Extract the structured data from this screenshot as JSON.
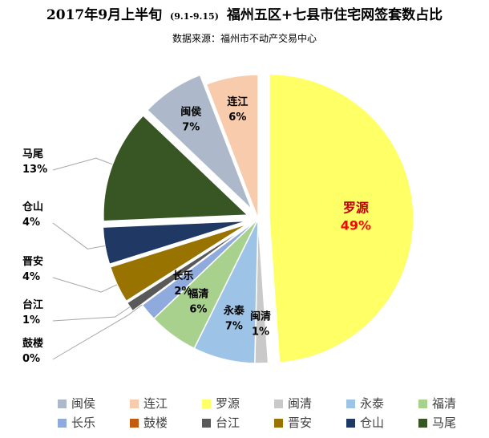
{
  "chart_data": {
    "type": "pie",
    "title": "2017年9月上半旬",
    "title_date_range": "(9.1-9.15)",
    "title_rest": "福州五区+七县市住宅网签套数占比",
    "subtitle": "数据来源：福州市不动产交易中心",
    "legend_position": "bottom",
    "slices": [
      {
        "name": "罗源",
        "label": "49%",
        "value": 49.3,
        "color": "#FFFF66",
        "exploded": true
      },
      {
        "name": "闽清",
        "label": "1%",
        "value": 1.5,
        "color": "#C9C9C9",
        "exploded": false
      },
      {
        "name": "永泰",
        "label": "7%",
        "value": 7.0,
        "color": "#9DC3E6",
        "exploded": false
      },
      {
        "name": "福清",
        "label": "6%",
        "value": 5.6,
        "color": "#A9D18E",
        "exploded": false
      },
      {
        "name": "长乐",
        "label": "2%",
        "value": 2.0,
        "color": "#8FAADC",
        "exploded": false
      },
      {
        "name": "鼓楼",
        "label": "0%",
        "value": 0.05,
        "color": "#C55A11",
        "exploded": false
      },
      {
        "name": "台江",
        "label": "1%",
        "value": 1.1,
        "color": "#595959",
        "exploded": true
      },
      {
        "name": "晋安",
        "label": "4%",
        "value": 4.2,
        "color": "#997300",
        "exploded": true
      },
      {
        "name": "仓山",
        "label": "4%",
        "value": 4.2,
        "color": "#203864",
        "exploded": true
      },
      {
        "name": "马尾",
        "label": "13%",
        "value": 12.9,
        "color": "#375623",
        "exploded": true
      },
      {
        "name": "闽侯",
        "label": "7%",
        "value": 7.1,
        "color": "#ADB9CA",
        "exploded": true
      },
      {
        "name": "连江",
        "label": "6%",
        "value": 5.9,
        "color": "#F8CBAD",
        "exploded": false
      }
    ],
    "legend": [
      "闽侯",
      "连江",
      "罗源",
      "闽清",
      "永泰",
      "福清",
      "长乐",
      "鼓楼",
      "台江",
      "晋安",
      "仓山",
      "马尾"
    ],
    "highlight": {
      "name_color": "#C00000",
      "label_color": "#FF0000",
      "slice": "罗源"
    }
  }
}
